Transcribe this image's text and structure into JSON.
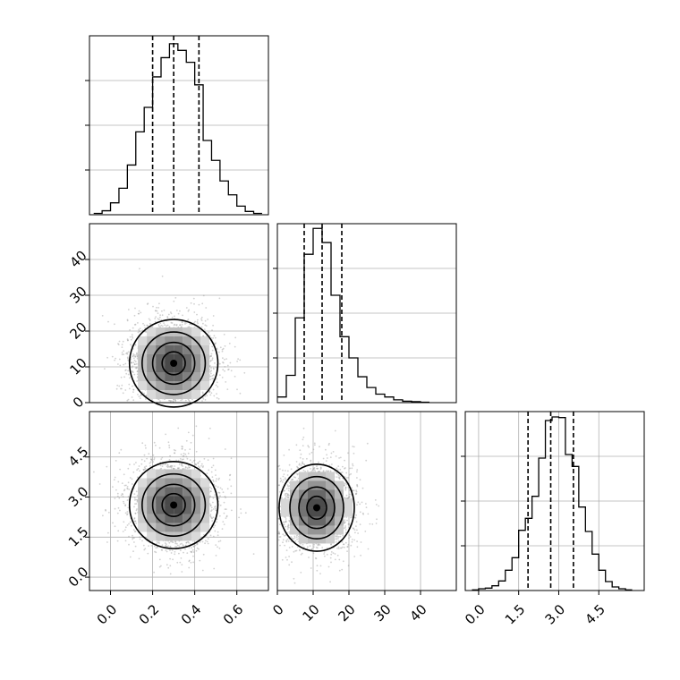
{
  "colors": {
    "line": "#000000",
    "grid": "#b0b0b0",
    "scatter": "#9a9a9a",
    "background": "#ffffff"
  },
  "chart_data": [
    {
      "type": "histogram",
      "panel": "row1-col1",
      "xlim": [
        -0.1,
        0.75
      ],
      "bins_left": [
        -0.08,
        -0.04,
        0.0,
        0.04,
        0.08,
        0.12,
        0.16,
        0.2,
        0.24,
        0.28,
        0.32,
        0.36,
        0.4,
        0.44,
        0.48,
        0.52,
        0.56,
        0.6,
        0.64,
        0.68
      ],
      "bin_width": 0.04,
      "counts": [
        2,
        6,
        18,
        40,
        75,
        125,
        162,
        208,
        237,
        258,
        248,
        230,
        196,
        112,
        82,
        51,
        30,
        13,
        5,
        2
      ],
      "ylim": [
        0,
        270
      ],
      "quantiles": [
        0.2,
        0.3,
        0.42
      ],
      "grid": true
    },
    {
      "type": "scatter+contour",
      "panel": "row2-col1",
      "xlim": [
        -0.1,
        0.75
      ],
      "ylim": [
        0,
        50
      ],
      "yticks": [
        "0",
        "10",
        "20",
        "30",
        "40"
      ],
      "ytick_values": [
        0,
        10,
        20,
        30,
        40
      ],
      "density_center": [
        0.3,
        11
      ],
      "density_spread": [
        0.1,
        6
      ],
      "grid": true
    },
    {
      "type": "histogram",
      "panel": "row2-col2",
      "xlim": [
        0,
        50
      ],
      "bins_left": [
        0,
        2.5,
        5,
        7.5,
        10,
        12.5,
        15,
        17.5,
        20,
        22.5,
        25,
        27.5,
        30,
        32.5,
        35,
        37.5,
        40
      ],
      "bin_width": 2.5,
      "counts": [
        12,
        58,
        180,
        315,
        370,
        340,
        228,
        140,
        95,
        55,
        32,
        18,
        12,
        6,
        3,
        2,
        1
      ],
      "ylim": [
        0,
        380
      ],
      "quantiles": [
        7.5,
        12.5,
        18
      ],
      "grid": true
    },
    {
      "type": "scatter+contour",
      "panel": "row3-col1",
      "xlim": [
        -0.1,
        0.75
      ],
      "ylim": [
        -0.5,
        6.2
      ],
      "xticks": [
        "0.0",
        "0.2",
        "0.4",
        "0.6"
      ],
      "xtick_values": [
        0.0,
        0.2,
        0.4,
        0.6
      ],
      "yticks": [
        "0.0",
        "1.5",
        "3.0",
        "4.5"
      ],
      "ytick_values": [
        0.0,
        1.5,
        3.0,
        4.5
      ],
      "density_center": [
        0.3,
        2.7
      ],
      "density_spread": [
        0.1,
        0.8
      ],
      "grid": true
    },
    {
      "type": "scatter+contour",
      "panel": "row3-col2",
      "xlim": [
        0,
        50
      ],
      "ylim": [
        -0.5,
        6.2
      ],
      "xticks": [
        "0",
        "10",
        "20",
        "30",
        "40"
      ],
      "xtick_values": [
        0,
        10,
        20,
        30,
        40
      ],
      "density_center": [
        11,
        2.6
      ],
      "density_spread": [
        5,
        0.8
      ],
      "grid": true
    },
    {
      "type": "histogram",
      "panel": "row3-col3",
      "xlim": [
        -0.5,
        6.2
      ],
      "bins_left": [
        -0.25,
        0.0,
        0.25,
        0.5,
        0.75,
        1.0,
        1.25,
        1.5,
        1.75,
        2.0,
        2.25,
        2.5,
        2.75,
        3.0,
        3.25,
        3.5,
        3.75,
        4.0,
        4.25,
        4.5,
        4.75,
        5.0,
        5.25,
        5.5
      ],
      "bin_width": 0.25,
      "counts": [
        1,
        3,
        4,
        8,
        16,
        34,
        55,
        101,
        121,
        158,
        222,
        285,
        291,
        290,
        228,
        208,
        140,
        99,
        61,
        34,
        15,
        6,
        3,
        1
      ],
      "ylim": [
        0,
        300
      ],
      "xticks": [
        "0.0",
        "1.5",
        "3.0",
        "4.5"
      ],
      "xtick_values": [
        0.0,
        1.5,
        3.0,
        4.5
      ],
      "quantiles": [
        1.85,
        2.7,
        3.55
      ],
      "grid": true
    }
  ]
}
